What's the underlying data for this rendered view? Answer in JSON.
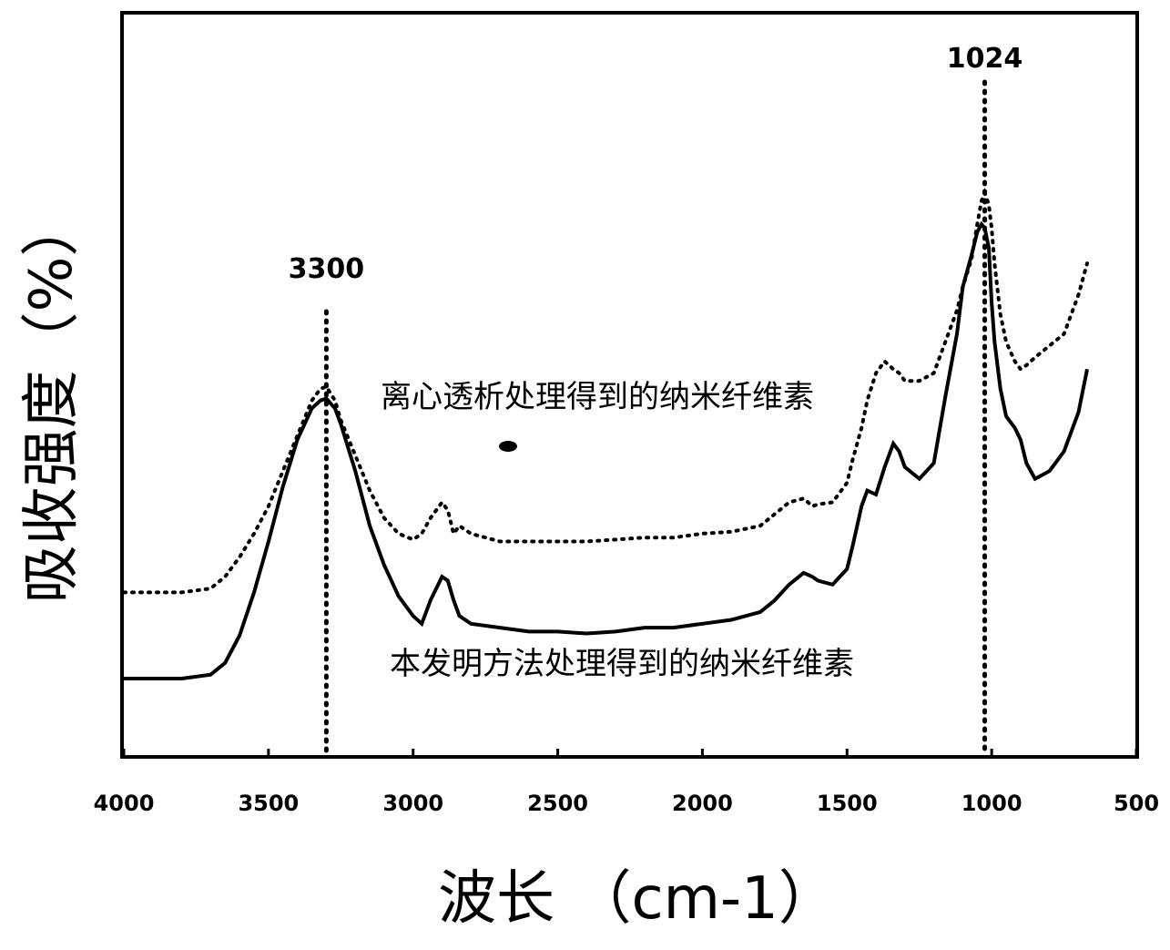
{
  "chart_data": {
    "type": "line",
    "xlabel": "波长 （cm-1）",
    "ylabel": "吸收强度（%）",
    "xlim": [
      4000,
      500
    ],
    "x_ticks": [
      "4000",
      "3500",
      "3000",
      "2500",
      "2000",
      "1500",
      "1000",
      "500"
    ],
    "grid": false,
    "annotations": [
      {
        "text": "3300",
        "x": 3300
      },
      {
        "text": "1024",
        "x": 1024
      }
    ],
    "series": [
      {
        "name": "离心透析处理得到的纳米纤维素",
        "style": "dotted",
        "x": [
          4000,
          3900,
          3800,
          3700,
          3650,
          3600,
          3550,
          3500,
          3450,
          3400,
          3350,
          3320,
          3300,
          3270,
          3250,
          3200,
          3150,
          3100,
          3050,
          3000,
          2970,
          2940,
          2900,
          2880,
          2860,
          2840,
          2800,
          2700,
          2600,
          2500,
          2400,
          2300,
          2200,
          2100,
          2000,
          1900,
          1800,
          1750,
          1700,
          1650,
          1620,
          1600,
          1550,
          1500,
          1480,
          1450,
          1430,
          1400,
          1370,
          1340,
          1320,
          1300,
          1250,
          1200,
          1160,
          1120,
          1100,
          1070,
          1050,
          1035,
          1024,
          1010,
          1000,
          990,
          970,
          950,
          920,
          900,
          880,
          850,
          800,
          750,
          700,
          670
        ],
        "y": [
          0.22,
          0.22,
          0.22,
          0.23,
          0.26,
          0.31,
          0.37,
          0.44,
          0.53,
          0.62,
          0.71,
          0.74,
          0.745,
          0.71,
          0.66,
          0.57,
          0.48,
          0.41,
          0.37,
          0.355,
          0.37,
          0.41,
          0.45,
          0.43,
          0.37,
          0.39,
          0.37,
          0.35,
          0.35,
          0.35,
          0.35,
          0.355,
          0.36,
          0.36,
          0.37,
          0.375,
          0.39,
          0.42,
          0.45,
          0.46,
          0.44,
          0.445,
          0.45,
          0.5,
          0.56,
          0.64,
          0.71,
          0.78,
          0.81,
          0.79,
          0.78,
          0.76,
          0.76,
          0.78,
          0.86,
          0.94,
          1.0,
          1.07,
          1.16,
          1.22,
          1.24,
          1.21,
          1.15,
          1.06,
          0.93,
          0.86,
          0.81,
          0.79,
          0.8,
          0.82,
          0.85,
          0.88,
          0.98,
          1.06
        ]
      },
      {
        "name": "本发明方法处理得到的纳米纤维素",
        "style": "solid",
        "x": [
          4000,
          3900,
          3800,
          3700,
          3650,
          3600,
          3550,
          3500,
          3450,
          3400,
          3350,
          3320,
          3300,
          3270,
          3250,
          3200,
          3150,
          3100,
          3050,
          3000,
          2970,
          2940,
          2900,
          2880,
          2860,
          2840,
          2800,
          2700,
          2600,
          2500,
          2400,
          2300,
          2200,
          2100,
          2000,
          1900,
          1800,
          1750,
          1700,
          1650,
          1620,
          1600,
          1550,
          1500,
          1480,
          1450,
          1430,
          1400,
          1370,
          1340,
          1320,
          1300,
          1250,
          1200,
          1160,
          1120,
          1100,
          1070,
          1050,
          1035,
          1024,
          1010,
          1000,
          990,
          970,
          950,
          920,
          900,
          880,
          850,
          800,
          750,
          700,
          670
        ],
        "y": [
          0.0,
          0.0,
          0.0,
          0.01,
          0.04,
          0.11,
          0.22,
          0.35,
          0.49,
          0.61,
          0.69,
          0.71,
          0.715,
          0.69,
          0.65,
          0.53,
          0.39,
          0.29,
          0.21,
          0.16,
          0.14,
          0.2,
          0.26,
          0.25,
          0.2,
          0.16,
          0.14,
          0.13,
          0.12,
          0.12,
          0.115,
          0.12,
          0.13,
          0.13,
          0.14,
          0.15,
          0.17,
          0.2,
          0.24,
          0.27,
          0.26,
          0.25,
          0.24,
          0.28,
          0.34,
          0.44,
          0.48,
          0.47,
          0.54,
          0.6,
          0.58,
          0.54,
          0.51,
          0.55,
          0.72,
          0.88,
          1.0,
          1.08,
          1.14,
          1.16,
          1.15,
          1.1,
          0.96,
          0.86,
          0.74,
          0.67,
          0.64,
          0.61,
          0.55,
          0.51,
          0.53,
          0.58,
          0.68,
          0.79
        ]
      }
    ]
  }
}
